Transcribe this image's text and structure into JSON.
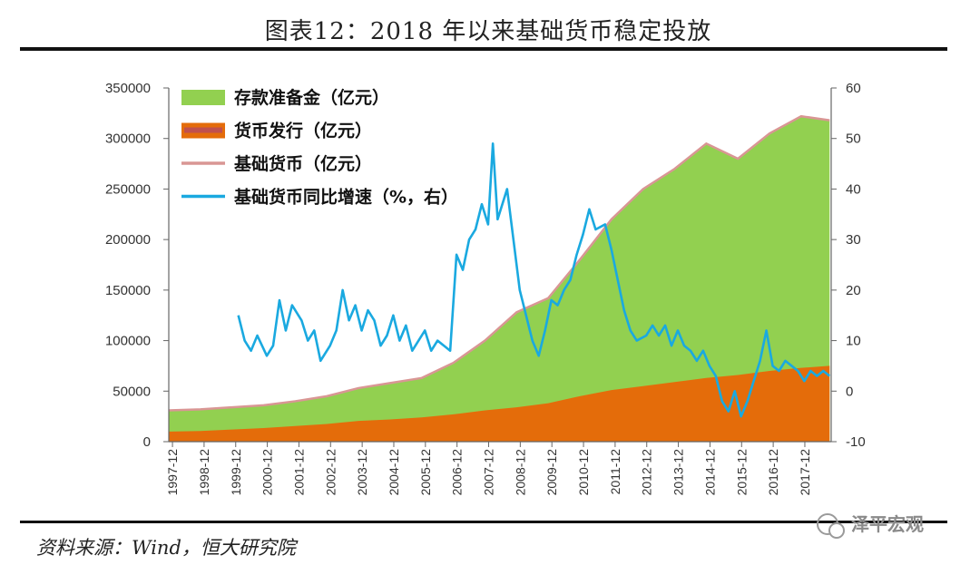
{
  "chart_data": {
    "type": "area",
    "title": "图表12：2018 年以来基础货币稳定投放",
    "source": "资料来源：Wind，恒大研究院",
    "watermark": "泽平宏观",
    "x_tick_labels": [
      "1997-12",
      "1998-12",
      "1999-12",
      "2000-12",
      "2001-12",
      "2002-12",
      "2003-12",
      "2004-12",
      "2005-12",
      "2006-12",
      "2007-12",
      "2008-12",
      "2009-12",
      "2010-12",
      "2011-12",
      "2012-12",
      "2013-12",
      "2014-12",
      "2015-12",
      "2016-12",
      "2017-12"
    ],
    "x_range": [
      1997.8,
      2018.75
    ],
    "y_left": {
      "label": "亿元",
      "range": [
        0,
        350000
      ],
      "ticks": [
        "0",
        "50000",
        "100000",
        "150000",
        "200000",
        "250000",
        "300000",
        "350000"
      ]
    },
    "y_right": {
      "label": "%",
      "range": [
        -10,
        60
      ],
      "ticks": [
        "-10",
        "0",
        "10",
        "20",
        "30",
        "40",
        "50",
        "60"
      ]
    },
    "legend": [
      {
        "name": "存款准备金（亿元）",
        "kind": "area",
        "color": "#92d050"
      },
      {
        "name": "货币发行（亿元）",
        "kind": "area",
        "color": "#e46c0a"
      },
      {
        "name": "基础货币（亿元）",
        "kind": "line",
        "color": "#d99694"
      },
      {
        "name": "基础货币同比增速（%，右）",
        "kind": "line",
        "color": "#1aa9e0"
      }
    ],
    "series": [
      {
        "name": "货币发行（亿元）",
        "axis": "left",
        "points": [
          [
            1997.8,
            10000
          ],
          [
            1998.8,
            10500
          ],
          [
            1999.8,
            12000
          ],
          [
            2000.8,
            13500
          ],
          [
            2001.8,
            15500
          ],
          [
            2002.8,
            17500
          ],
          [
            2003.8,
            20500
          ],
          [
            2004.8,
            22000
          ],
          [
            2005.8,
            24000
          ],
          [
            2006.8,
            27000
          ],
          [
            2007.8,
            31000
          ],
          [
            2008.8,
            34000
          ],
          [
            2009.8,
            38000
          ],
          [
            2010.8,
            45000
          ],
          [
            2011.8,
            51000
          ],
          [
            2012.8,
            55000
          ],
          [
            2013.8,
            59000
          ],
          [
            2014.8,
            63000
          ],
          [
            2015.8,
            66000
          ],
          [
            2016.8,
            70000
          ],
          [
            2017.8,
            73000
          ],
          [
            2018.7,
            75000
          ]
        ]
      },
      {
        "name": "基础货币（亿元）",
        "axis": "left",
        "points": [
          [
            1997.8,
            31000
          ],
          [
            1998.8,
            32000
          ],
          [
            1999.8,
            34000
          ],
          [
            2000.8,
            36000
          ],
          [
            2001.8,
            40000
          ],
          [
            2002.8,
            45000
          ],
          [
            2003.8,
            53000
          ],
          [
            2004.8,
            58000
          ],
          [
            2005.8,
            63000
          ],
          [
            2006.8,
            78000
          ],
          [
            2007.8,
            100000
          ],
          [
            2008.8,
            128000
          ],
          [
            2009.8,
            142000
          ],
          [
            2010.8,
            180000
          ],
          [
            2011.8,
            220000
          ],
          [
            2012.8,
            250000
          ],
          [
            2013.8,
            270000
          ],
          [
            2014.8,
            295000
          ],
          [
            2015.8,
            280000
          ],
          [
            2016.8,
            305000
          ],
          [
            2017.8,
            322000
          ],
          [
            2018.7,
            318000
          ]
        ]
      },
      {
        "name": "基础货币同比增速（%，右）",
        "axis": "right",
        "points": [
          [
            2000.0,
            15
          ],
          [
            2000.2,
            10
          ],
          [
            2000.4,
            8
          ],
          [
            2000.6,
            11
          ],
          [
            2000.9,
            7
          ],
          [
            2001.1,
            9
          ],
          [
            2001.3,
            18
          ],
          [
            2001.5,
            12
          ],
          [
            2001.7,
            17
          ],
          [
            2002.0,
            14
          ],
          [
            2002.2,
            10
          ],
          [
            2002.4,
            12
          ],
          [
            2002.6,
            6
          ],
          [
            2002.9,
            9
          ],
          [
            2003.1,
            12
          ],
          [
            2003.3,
            20
          ],
          [
            2003.5,
            14
          ],
          [
            2003.7,
            17
          ],
          [
            2003.9,
            12
          ],
          [
            2004.1,
            16
          ],
          [
            2004.3,
            14
          ],
          [
            2004.5,
            9
          ],
          [
            2004.7,
            11
          ],
          [
            2004.9,
            15
          ],
          [
            2005.1,
            10
          ],
          [
            2005.3,
            13
          ],
          [
            2005.5,
            8
          ],
          [
            2005.7,
            10
          ],
          [
            2005.9,
            12
          ],
          [
            2006.1,
            8
          ],
          [
            2006.3,
            10
          ],
          [
            2006.5,
            9
          ],
          [
            2006.7,
            8
          ],
          [
            2006.9,
            27
          ],
          [
            2007.1,
            24
          ],
          [
            2007.3,
            30
          ],
          [
            2007.5,
            32
          ],
          [
            2007.7,
            37
          ],
          [
            2007.9,
            33
          ],
          [
            2008.05,
            49
          ],
          [
            2008.2,
            34
          ],
          [
            2008.5,
            40
          ],
          [
            2008.7,
            30
          ],
          [
            2008.9,
            20
          ],
          [
            2009.1,
            15
          ],
          [
            2009.3,
            10
          ],
          [
            2009.5,
            7
          ],
          [
            2009.7,
            12
          ],
          [
            2009.9,
            18
          ],
          [
            2010.1,
            17
          ],
          [
            2010.3,
            20
          ],
          [
            2010.5,
            22
          ],
          [
            2010.7,
            27
          ],
          [
            2010.9,
            31
          ],
          [
            2011.1,
            36
          ],
          [
            2011.3,
            32
          ],
          [
            2011.6,
            33
          ],
          [
            2011.8,
            28
          ],
          [
            2012.0,
            22
          ],
          [
            2012.2,
            16
          ],
          [
            2012.4,
            12
          ],
          [
            2012.6,
            10
          ],
          [
            2012.9,
            11
          ],
          [
            2013.1,
            13
          ],
          [
            2013.3,
            11
          ],
          [
            2013.5,
            13
          ],
          [
            2013.7,
            9
          ],
          [
            2013.9,
            12
          ],
          [
            2014.1,
            9
          ],
          [
            2014.3,
            8
          ],
          [
            2014.5,
            6
          ],
          [
            2014.7,
            8
          ],
          [
            2014.9,
            5
          ],
          [
            2015.1,
            3
          ],
          [
            2015.3,
            -2
          ],
          [
            2015.5,
            -4
          ],
          [
            2015.7,
            0
          ],
          [
            2015.9,
            -5
          ],
          [
            2016.1,
            -2
          ],
          [
            2016.3,
            2
          ],
          [
            2016.5,
            6
          ],
          [
            2016.7,
            12
          ],
          [
            2016.9,
            5
          ],
          [
            2017.1,
            4
          ],
          [
            2017.3,
            6
          ],
          [
            2017.5,
            5
          ],
          [
            2017.7,
            4
          ],
          [
            2017.9,
            2
          ],
          [
            2018.1,
            4
          ],
          [
            2018.3,
            3
          ],
          [
            2018.5,
            4
          ],
          [
            2018.7,
            3
          ]
        ]
      }
    ]
  }
}
